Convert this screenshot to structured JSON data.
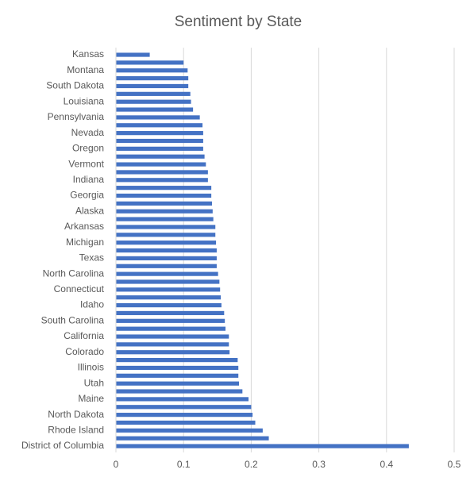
{
  "chart_data": {
    "type": "barh",
    "title": "Sentiment by State",
    "categories": [
      "Kansas",
      null,
      "Montana",
      null,
      "South Dakota",
      null,
      "Louisiana",
      null,
      "Pennsylvania",
      null,
      "Nevada",
      null,
      "Oregon",
      null,
      "Vermont",
      null,
      "Indiana",
      null,
      "Georgia",
      null,
      "Alaska",
      null,
      "Arkansas",
      null,
      "Michigan",
      null,
      "Texas",
      null,
      "North Carolina",
      null,
      "Connecticut",
      null,
      "Idaho",
      null,
      "South Carolina",
      null,
      "California",
      null,
      "Colorado",
      null,
      "Illinois",
      null,
      "Utah",
      null,
      "Maine",
      null,
      "North Dakota",
      null,
      "Rhode Island",
      null,
      "District of Columbia"
    ],
    "values": [
      0.05,
      0.1,
      0.106,
      0.107,
      0.107,
      0.11,
      0.111,
      0.114,
      0.124,
      0.128,
      0.129,
      0.129,
      0.129,
      0.131,
      0.133,
      0.136,
      0.136,
      0.141,
      0.141,
      0.142,
      0.143,
      0.144,
      0.147,
      0.147,
      0.148,
      0.149,
      0.149,
      0.149,
      0.151,
      0.153,
      0.154,
      0.155,
      0.156,
      0.16,
      0.161,
      0.162,
      0.167,
      0.167,
      0.168,
      0.18,
      0.181,
      0.181,
      0.182,
      0.187,
      0.196,
      0.2,
      0.202,
      0.206,
      0.217,
      0.226,
      0.433
    ],
    "color": "#4472c4",
    "xlim": [
      0,
      0.5
    ],
    "xticks": [
      0,
      0.1,
      0.2,
      0.3,
      0.4,
      0.5
    ],
    "grid": true
  }
}
